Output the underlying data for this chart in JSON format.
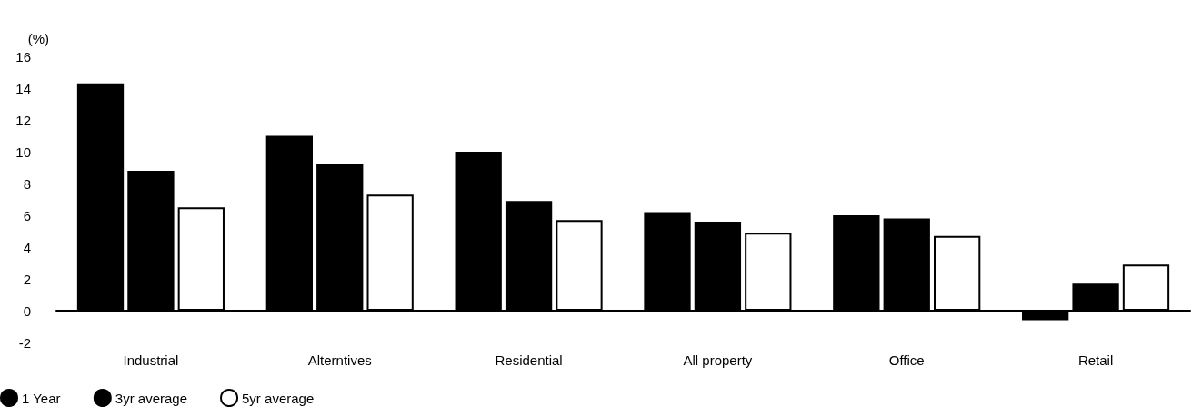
{
  "chart_data": {
    "type": "bar",
    "ylabel": "(%)",
    "categories": [
      "Industrial",
      "Alterntives",
      "Residential",
      "All property",
      "Office",
      "Retail"
    ],
    "series": [
      {
        "name": "1 Year",
        "color": "#000000",
        "values": [
          14.3,
          11.0,
          10.0,
          6.2,
          6.0,
          -0.6
        ]
      },
      {
        "name": "3yr average",
        "color": "#000000",
        "values": [
          8.8,
          9.2,
          6.9,
          5.6,
          5.8,
          1.7
        ]
      },
      {
        "name": "5yr average",
        "color": "#ffffff",
        "values": [
          6.5,
          7.3,
          5.7,
          4.9,
          4.7,
          2.9
        ]
      }
    ],
    "ylim": [
      -2,
      16
    ],
    "yticks": [
      -2,
      0,
      2,
      4,
      6,
      8,
      10,
      12,
      14,
      16
    ],
    "legend": "bottom left"
  }
}
